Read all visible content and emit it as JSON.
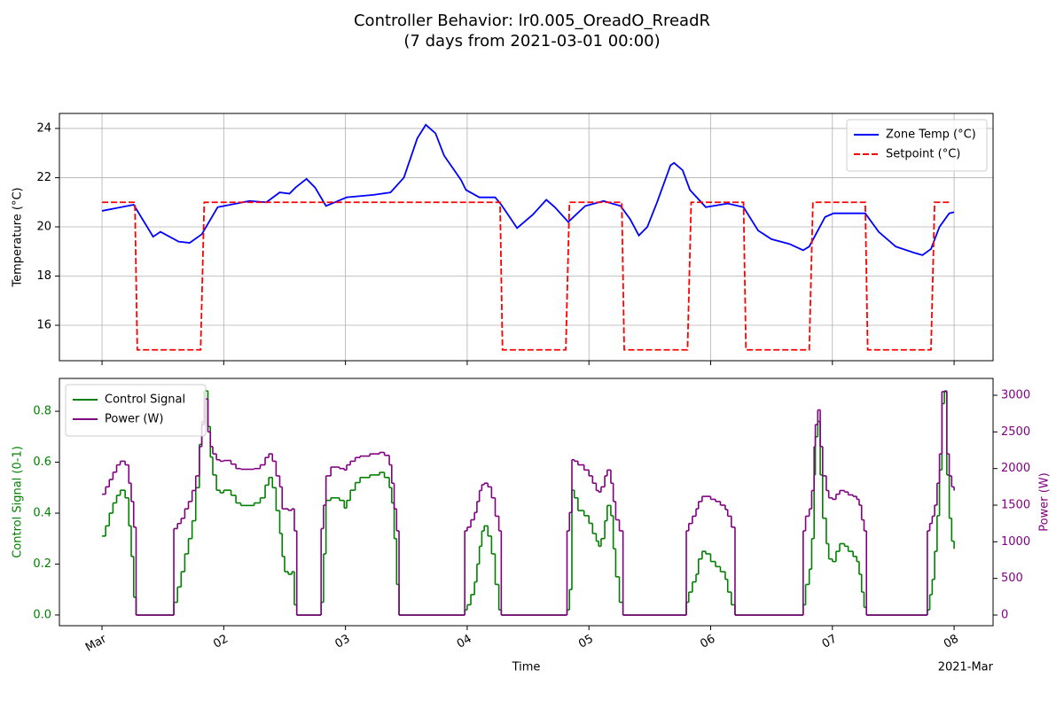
{
  "title": "Controller Behavior: lr0.005_OreadO_RreadR",
  "subtitle": "(7 days from 2021-03-01 00:00)",
  "chart_data": [
    {
      "type": "line",
      "ylabel": "Temperature (°C)",
      "grid": true,
      "legend": "upper right",
      "xlim": [
        -0.35,
        7.32
      ],
      "ylim": [
        14.56,
        24.61
      ],
      "yticks": [
        16,
        18,
        20,
        22,
        24
      ],
      "series": [
        {
          "name": "Zone Temp (°C)",
          "color": "#0000ff",
          "linestyle": "solid",
          "x": [
            0,
            0.26,
            0.42,
            0.48,
            0.63,
            0.72,
            0.82,
            0.95,
            1.21,
            1.35,
            1.46,
            1.54,
            1.59,
            1.68,
            1.75,
            1.84,
            2.01,
            2.23,
            2.37,
            2.48,
            2.59,
            2.66,
            2.74,
            2.81,
            2.95,
            2.99,
            3.1,
            3.23,
            3.28,
            3.41,
            3.54,
            3.65,
            3.72,
            3.83,
            3.97,
            4.12,
            4.26,
            4.34,
            4.41,
            4.48,
            4.56,
            4.67,
            4.7,
            4.77,
            4.83,
            4.96,
            5.14,
            5.27,
            5.39,
            5.5,
            5.65,
            5.76,
            5.81,
            5.94,
            6.01,
            6.27,
            6.38,
            6.52,
            6.67,
            6.74,
            6.81,
            6.88,
            6.96,
            7.0
          ],
          "values": [
            20.65,
            20.9,
            19.6,
            19.8,
            19.4,
            19.35,
            19.7,
            20.8,
            21.05,
            21.0,
            21.4,
            21.35,
            21.6,
            21.95,
            21.6,
            20.85,
            21.2,
            21.3,
            21.4,
            22.0,
            23.6,
            24.15,
            23.8,
            22.9,
            21.9,
            21.5,
            21.2,
            21.2,
            20.9,
            19.95,
            20.5,
            21.1,
            20.8,
            20.2,
            20.85,
            21.05,
            20.85,
            20.3,
            19.65,
            20.0,
            21.0,
            22.5,
            22.6,
            22.3,
            21.5,
            20.8,
            20.95,
            20.8,
            19.85,
            19.5,
            19.3,
            19.05,
            19.2,
            20.4,
            20.55,
            20.55,
            19.8,
            19.2,
            18.95,
            18.85,
            19.1,
            20.0,
            20.55,
            20.6
          ]
        },
        {
          "name": "Setpoint (°C)",
          "color": "#ff0000",
          "linestyle": "dashed",
          "x": [
            0,
            0.27,
            0.29,
            0.81,
            0.84,
            3.27,
            3.29,
            3.81,
            3.84,
            4.27,
            4.29,
            4.81,
            4.84,
            5.27,
            5.29,
            5.81,
            5.84,
            6.27,
            6.29,
            6.81,
            6.84,
            6.97
          ],
          "values": [
            21,
            21,
            15,
            15,
            21,
            21,
            15,
            15,
            21,
            21,
            15,
            15,
            21,
            21,
            15,
            15,
            21,
            21,
            15,
            15,
            21,
            21
          ]
        }
      ]
    },
    {
      "type": "line",
      "drawstyle": "steps-post",
      "xlabel": "Time",
      "offset_label": "2021-Mar",
      "legend": "upper left",
      "grid": false,
      "ylabel": "Control Signal (0-1)",
      "y2label": "Power (W)",
      "xlim": [
        -0.35,
        7.32
      ],
      "xticks": [
        {
          "value": 0,
          "label": "Mar"
        },
        {
          "value": 1,
          "label": "02"
        },
        {
          "value": 2,
          "label": "03"
        },
        {
          "value": 3,
          "label": "04"
        },
        {
          "value": 4,
          "label": "05"
        },
        {
          "value": 5,
          "label": "06"
        },
        {
          "value": 6,
          "label": "07"
        },
        {
          "value": 7,
          "label": "08"
        }
      ],
      "ylim": [
        -0.042,
        0.929
      ],
      "yticks": [
        {
          "value": 0,
          "label": "0.0"
        },
        0.2,
        0.4,
        0.6,
        0.8
      ],
      "y2lim": [
        -145,
        3230
      ],
      "y2ticks": [
        0,
        500,
        1000,
        1500,
        2000,
        2500,
        3000
      ],
      "x": [
        0,
        0.03,
        0.06,
        0.09,
        0.12,
        0.15,
        0.19,
        0.22,
        0.24,
        0.26,
        0.28,
        0.59,
        0.62,
        0.65,
        0.68,
        0.71,
        0.74,
        0.77,
        0.8,
        0.82,
        0.84,
        0.87,
        0.89,
        0.91,
        0.94,
        0.97,
        1.0,
        1.06,
        1.1,
        1.14,
        1.25,
        1.3,
        1.34,
        1.37,
        1.4,
        1.43,
        1.46,
        1.48,
        1.5,
        1.53,
        1.56,
        1.58,
        1.6,
        1.8,
        1.82,
        1.84,
        1.88,
        1.95,
        1.99,
        2.01,
        2.04,
        2.08,
        2.12,
        2.2,
        2.28,
        2.32,
        2.36,
        2.38,
        2.4,
        2.42,
        2.44,
        2.98,
        3.0,
        3.03,
        3.06,
        3.08,
        3.1,
        3.12,
        3.14,
        3.17,
        3.2,
        3.23,
        3.26,
        3.28,
        3.82,
        3.84,
        3.86,
        3.88,
        3.91,
        3.96,
        4.0,
        4.03,
        4.06,
        4.08,
        4.1,
        4.13,
        4.15,
        4.18,
        4.2,
        4.22,
        4.25,
        4.28,
        4.8,
        4.82,
        4.85,
        4.88,
        4.9,
        4.93,
        4.96,
        5.0,
        5.04,
        5.08,
        5.12,
        5.14,
        5.17,
        5.2,
        5.76,
        5.78,
        5.81,
        5.83,
        5.85,
        5.86,
        5.88,
        5.9,
        5.92,
        5.95,
        5.97,
        6.0,
        6.03,
        6.06,
        6.1,
        6.13,
        6.17,
        6.2,
        6.22,
        6.24,
        6.26,
        6.28,
        6.78,
        6.8,
        6.82,
        6.84,
        6.86,
        6.88,
        6.9,
        6.92,
        6.94,
        6.96,
        6.98,
        7.0
      ],
      "series": [
        {
          "name": "Control Signal",
          "color": "#008000",
          "values": [
            0.31,
            0.35,
            0.4,
            0.44,
            0.47,
            0.49,
            0.46,
            0.35,
            0.23,
            0.07,
            0,
            0.05,
            0.11,
            0.17,
            0.24,
            0.3,
            0.37,
            0.5,
            0.67,
            0.76,
            0.88,
            0.74,
            0.62,
            0.55,
            0.49,
            0.48,
            0.49,
            0.47,
            0.44,
            0.43,
            0.44,
            0.46,
            0.51,
            0.54,
            0.5,
            0.41,
            0.32,
            0.23,
            0.17,
            0.16,
            0.17,
            0.04,
            0,
            0.05,
            0.24,
            0.45,
            0.46,
            0.45,
            0.42,
            0.45,
            0.49,
            0.52,
            0.54,
            0.55,
            0.56,
            0.54,
            0.5,
            0.44,
            0.3,
            0.12,
            0,
            0.02,
            0.04,
            0.08,
            0.13,
            0.2,
            0.27,
            0.33,
            0.35,
            0.31,
            0.24,
            0.12,
            0.02,
            0,
            0.02,
            0.1,
            0.49,
            0.46,
            0.41,
            0.39,
            0.36,
            0.32,
            0.29,
            0.27,
            0.3,
            0.37,
            0.43,
            0.39,
            0.26,
            0.15,
            0.05,
            0,
            0.05,
            0.09,
            0.13,
            0.16,
            0.22,
            0.25,
            0.24,
            0.21,
            0.19,
            0.17,
            0.14,
            0.09,
            0.04,
            0,
            0.04,
            0.12,
            0.18,
            0.3,
            0.55,
            0.7,
            0.76,
            0.55,
            0.38,
            0.28,
            0.22,
            0.21,
            0.25,
            0.28,
            0.27,
            0.25,
            0.23,
            0.21,
            0.16,
            0.09,
            0.03,
            0,
            0.02,
            0.08,
            0.14,
            0.25,
            0.39,
            0.57,
            0.83,
            0.88,
            0.55,
            0.38,
            0.29,
            0.26
          ]
        },
        {
          "name": "Power (W)",
          "color": "#800080",
          "axis": "y2",
          "values": [
            1650,
            1750,
            1850,
            1950,
            2050,
            2100,
            2050,
            1800,
            1550,
            1200,
            0,
            1180,
            1250,
            1320,
            1450,
            1550,
            1700,
            1900,
            2300,
            2600,
            2950,
            2500,
            2300,
            2200,
            2120,
            2100,
            2110,
            2060,
            2000,
            1990,
            2000,
            2050,
            2150,
            2200,
            2100,
            1900,
            1750,
            1450,
            1450,
            1430,
            1450,
            1150,
            0,
            1180,
            1500,
            1900,
            2020,
            2000,
            1980,
            2050,
            2100,
            2150,
            2170,
            2200,
            2220,
            2180,
            2050,
            1800,
            1450,
            1150,
            0,
            1150,
            1200,
            1300,
            1400,
            1550,
            1700,
            1780,
            1800,
            1750,
            1600,
            1350,
            1150,
            0,
            1150,
            1400,
            2120,
            2100,
            2050,
            1980,
            1900,
            1800,
            1700,
            1680,
            1750,
            1900,
            1980,
            1800,
            1550,
            1300,
            1150,
            0,
            1150,
            1250,
            1350,
            1450,
            1550,
            1620,
            1620,
            1580,
            1550,
            1500,
            1440,
            1350,
            1200,
            0,
            1150,
            1350,
            1450,
            1700,
            2300,
            2600,
            2800,
            2300,
            1900,
            1700,
            1600,
            1580,
            1650,
            1700,
            1680,
            1640,
            1620,
            1580,
            1500,
            1300,
            1150,
            0,
            1150,
            1250,
            1350,
            1500,
            1800,
            2200,
            3050,
            3050,
            2200,
            1900,
            1750,
            1700
          ]
        }
      ]
    }
  ]
}
